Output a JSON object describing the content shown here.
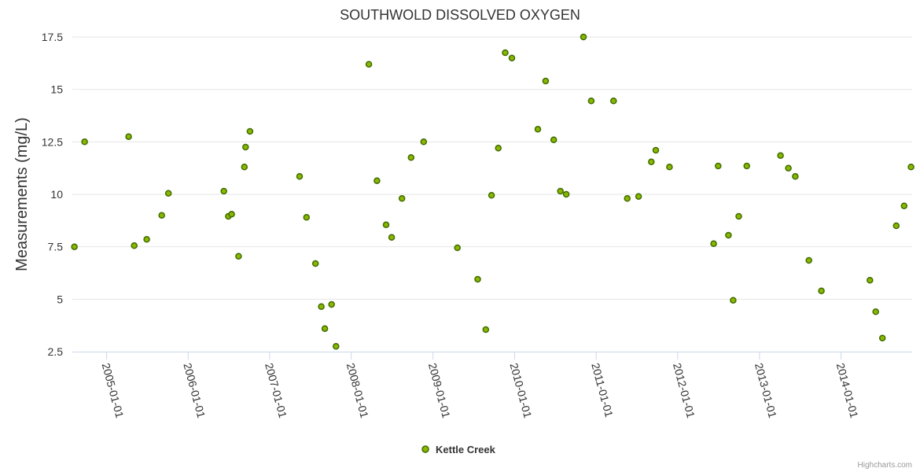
{
  "chart_data": {
    "type": "scatter",
    "title": "SOUTHWOLD DISSOLVED OXYGEN",
    "xlabel": "",
    "ylabel": "Measurements (mg/L)",
    "ylim": [
      2.5,
      17.5
    ],
    "yticks": [
      "2.5",
      "5",
      "7.5",
      "10",
      "12.5",
      "15",
      "17.5"
    ],
    "xlim": [
      "2004-08-01",
      "2014-11-15"
    ],
    "xticks": [
      "2005-01-01",
      "2006-01-01",
      "2007-01-01",
      "2008-01-01",
      "2009-01-01",
      "2010-01-01",
      "2011-01-01",
      "2012-01-01",
      "2013-01-01",
      "2014-01-01"
    ],
    "legend": "bottom-center",
    "credits": "Highcharts.com",
    "series": [
      {
        "name": "Kettle Creek",
        "color": "#8ab800",
        "points": [
          [
            "2004-08-10",
            7.5
          ],
          [
            "2004-09-25",
            12.5
          ],
          [
            "2005-04-10",
            12.75
          ],
          [
            "2005-05-05",
            7.55
          ],
          [
            "2005-06-30",
            7.85
          ],
          [
            "2005-09-05",
            9.0
          ],
          [
            "2005-10-05",
            10.05
          ],
          [
            "2006-06-10",
            10.15
          ],
          [
            "2006-06-30",
            8.95
          ],
          [
            "2006-07-15",
            9.05
          ],
          [
            "2006-08-15",
            7.05
          ],
          [
            "2006-09-10",
            11.3
          ],
          [
            "2006-09-15",
            12.25
          ],
          [
            "2006-10-05",
            13.0
          ],
          [
            "2007-05-15",
            10.85
          ],
          [
            "2007-06-15",
            8.9
          ],
          [
            "2007-07-25",
            6.7
          ],
          [
            "2007-08-20",
            4.65
          ],
          [
            "2007-09-05",
            3.6
          ],
          [
            "2007-10-05",
            4.75
          ],
          [
            "2007-10-25",
            2.75
          ],
          [
            "2008-03-20",
            16.2
          ],
          [
            "2008-04-25",
            10.65
          ],
          [
            "2008-06-05",
            8.55
          ],
          [
            "2008-06-30",
            7.95
          ],
          [
            "2008-08-15",
            9.8
          ],
          [
            "2008-09-25",
            11.75
          ],
          [
            "2008-11-20",
            12.5
          ],
          [
            "2009-04-20",
            7.45
          ],
          [
            "2009-07-20",
            5.95
          ],
          [
            "2009-08-25",
            3.55
          ],
          [
            "2009-09-20",
            9.95
          ],
          [
            "2009-10-20",
            12.2
          ],
          [
            "2009-11-20",
            16.75
          ],
          [
            "2009-12-20",
            16.5
          ],
          [
            "2010-04-15",
            13.1
          ],
          [
            "2010-05-20",
            15.4
          ],
          [
            "2010-06-25",
            12.6
          ],
          [
            "2010-07-25",
            10.15
          ],
          [
            "2010-08-20",
            10.0
          ],
          [
            "2010-11-05",
            17.5
          ],
          [
            "2010-12-10",
            14.45
          ],
          [
            "2011-03-20",
            14.45
          ],
          [
            "2011-05-20",
            9.8
          ],
          [
            "2011-07-10",
            9.9
          ],
          [
            "2011-09-05",
            11.55
          ],
          [
            "2011-09-25",
            12.1
          ],
          [
            "2011-11-25",
            11.3
          ],
          [
            "2012-06-10",
            7.65
          ],
          [
            "2012-06-30",
            11.35
          ],
          [
            "2012-08-15",
            8.05
          ],
          [
            "2012-09-05",
            4.95
          ],
          [
            "2012-09-30",
            8.95
          ],
          [
            "2012-11-05",
            11.35
          ],
          [
            "2013-04-05",
            11.85
          ],
          [
            "2013-05-10",
            11.25
          ],
          [
            "2013-06-10",
            10.85
          ],
          [
            "2013-08-10",
            6.85
          ],
          [
            "2013-10-05",
            5.4
          ],
          [
            "2014-05-10",
            5.9
          ],
          [
            "2014-06-05",
            4.4
          ],
          [
            "2014-07-05",
            3.15
          ],
          [
            "2014-09-05",
            8.5
          ],
          [
            "2014-10-10",
            9.45
          ],
          [
            "2014-11-10",
            11.3
          ]
        ]
      }
    ]
  }
}
